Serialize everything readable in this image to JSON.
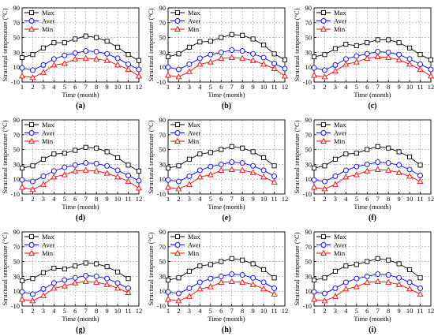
{
  "shared": {
    "ylabel": "Structural temperature (°C)",
    "xlabel": "Time (month)",
    "yticks": [
      "-10",
      "10",
      "30",
      "50",
      "70",
      "90"
    ],
    "xticks": [
      "1",
      "2",
      "3",
      "4",
      "5",
      "6",
      "7",
      "8",
      "9",
      "10",
      "11",
      "12"
    ],
    "legend": [
      "Max",
      "Aver",
      "Min"
    ]
  },
  "chart_data": [
    {
      "type": "line",
      "caption": "(a)",
      "x": [
        1,
        2,
        3,
        4,
        5,
        6,
        7,
        8,
        9,
        10,
        11,
        12
      ],
      "ylim": [
        -10,
        90
      ],
      "xlim": [
        1,
        12
      ],
      "grid": true,
      "legend_position": "top-left",
      "series": [
        {
          "name": "Max",
          "color": "#000000",
          "marker": "square",
          "values": [
            23,
            27,
            36,
            43,
            43,
            48,
            52,
            50,
            45,
            37,
            27,
            19
          ]
        },
        {
          "name": "Aver",
          "color": "#0000ff",
          "marker": "circle",
          "values": [
            9,
            6,
            13,
            21,
            26,
            29,
            32,
            31,
            28,
            22,
            14,
            7
          ]
        },
        {
          "name": "Min",
          "color": "#ff0000",
          "marker": "triangle",
          "values": [
            -2,
            -4,
            3,
            13,
            15,
            21,
            22,
            21,
            19,
            13,
            7,
            -2
          ]
        }
      ]
    },
    {
      "type": "line",
      "caption": "(b)",
      "x": [
        1,
        2,
        3,
        4,
        5,
        6,
        7,
        8,
        9,
        10,
        11,
        12
      ],
      "ylim": [
        -10,
        90
      ],
      "xlim": [
        1,
        12
      ],
      "grid": true,
      "legend_position": "top-left",
      "series": [
        {
          "name": "Max",
          "color": "#000000",
          "marker": "square",
          "values": [
            24,
            28,
            37,
            44,
            45,
            50,
            54,
            53,
            48,
            40,
            28,
            20
          ]
        },
        {
          "name": "Aver",
          "color": "#0000ff",
          "marker": "circle",
          "values": [
            10,
            7,
            14,
            22,
            27,
            30,
            33,
            32,
            28,
            23,
            15,
            8
          ]
        },
        {
          "name": "Min",
          "color": "#ff0000",
          "marker": "triangle",
          "values": [
            -1,
            -3,
            4,
            14,
            17,
            22,
            23,
            22,
            19,
            14,
            8,
            -2
          ]
        }
      ]
    },
    {
      "type": "line",
      "caption": "(c)",
      "x": [
        1,
        2,
        3,
        4,
        5,
        6,
        7,
        8,
        9,
        10,
        11,
        12
      ],
      "ylim": [
        -10,
        90
      ],
      "xlim": [
        1,
        12
      ],
      "grid": true,
      "legend_position": "top-left",
      "series": [
        {
          "name": "Max",
          "color": "#000000",
          "marker": "square",
          "values": [
            24,
            27,
            35,
            41,
            39,
            43,
            47,
            47,
            43,
            36,
            27,
            20
          ]
        },
        {
          "name": "Aver",
          "color": "#0000ff",
          "marker": "circle",
          "values": [
            9,
            6,
            13,
            21,
            25,
            28,
            31,
            30,
            27,
            21,
            14,
            7
          ]
        },
        {
          "name": "Min",
          "color": "#ff0000",
          "marker": "triangle",
          "values": [
            -1,
            -3,
            5,
            14,
            17,
            22,
            24,
            23,
            20,
            14,
            7,
            -2
          ]
        }
      ]
    },
    {
      "type": "line",
      "caption": "(d)",
      "x": [
        1,
        2,
        3,
        4,
        5,
        6,
        7,
        8,
        9,
        10,
        11,
        12
      ],
      "ylim": [
        -10,
        90
      ],
      "xlim": [
        1,
        12
      ],
      "grid": true,
      "legend_position": "top-left",
      "series": [
        {
          "name": "Max",
          "color": "#000000",
          "marker": "square",
          "values": [
            25,
            28,
            37,
            44,
            45,
            49,
            53,
            52,
            47,
            39,
            29,
            21
          ]
        },
        {
          "name": "Aver",
          "color": "#0000ff",
          "marker": "circle",
          "values": [
            9,
            7,
            14,
            21,
            26,
            29,
            32,
            31,
            28,
            22,
            15,
            8
          ]
        },
        {
          "name": "Min",
          "color": "#ff0000",
          "marker": "triangle",
          "values": [
            -1,
            -4,
            3,
            13,
            16,
            21,
            22,
            21,
            18,
            13,
            7,
            -2
          ]
        }
      ]
    },
    {
      "type": "line",
      "caption": "(e)",
      "x": [
        1,
        2,
        3,
        4,
        5,
        6,
        7,
        8,
        9,
        10,
        11,
        12
      ],
      "ylim": [
        -10,
        90
      ],
      "xlim": [
        1,
        12
      ],
      "grid": true,
      "legend_position": "top-left",
      "series": [
        {
          "name": "Max",
          "color": "#000000",
          "marker": "square",
          "values": [
            25,
            28,
            37,
            44,
            46,
            50,
            54,
            52,
            47,
            39,
            28,
            null
          ]
        },
        {
          "name": "Aver",
          "color": "#0000ff",
          "marker": "circle",
          "values": [
            9,
            7,
            14,
            22,
            27,
            30,
            33,
            32,
            28,
            22,
            14,
            null
          ]
        },
        {
          "name": "Min",
          "color": "#ff0000",
          "marker": "triangle",
          "values": [
            -1,
            -3,
            3,
            13,
            16,
            22,
            23,
            22,
            19,
            13,
            6,
            null
          ]
        }
      ]
    },
    {
      "type": "line",
      "caption": "(f)",
      "x": [
        1,
        2,
        3,
        4,
        5,
        6,
        7,
        8,
        9,
        10,
        11,
        12
      ],
      "ylim": [
        -10,
        90
      ],
      "xlim": [
        1,
        12
      ],
      "grid": true,
      "legend_position": "top-left",
      "series": [
        {
          "name": "Max",
          "color": "#000000",
          "marker": "square",
          "values": [
            25,
            28,
            37,
            44,
            45,
            50,
            54,
            52,
            47,
            40,
            29,
            null
          ]
        },
        {
          "name": "Aver",
          "color": "#0000ff",
          "marker": "circle",
          "values": [
            9,
            7,
            14,
            22,
            27,
            30,
            33,
            32,
            29,
            23,
            15,
            null
          ]
        },
        {
          "name": "Min",
          "color": "#ff0000",
          "marker": "triangle",
          "values": [
            -1,
            -3,
            3,
            13,
            16,
            21,
            23,
            22,
            19,
            14,
            7,
            null
          ]
        }
      ]
    },
    {
      "type": "line",
      "caption": "(g)",
      "x": [
        1,
        2,
        3,
        4,
        5,
        6,
        7,
        8,
        9,
        10,
        11,
        12
      ],
      "ylim": [
        -10,
        90
      ],
      "xlim": [
        1,
        12
      ],
      "grid": true,
      "legend_position": "top-left",
      "series": [
        {
          "name": "Max",
          "color": "#000000",
          "marker": "square",
          "values": [
            24,
            27,
            35,
            41,
            40,
            44,
            48,
            47,
            43,
            36,
            27,
            null
          ]
        },
        {
          "name": "Aver",
          "color": "#0000ff",
          "marker": "circle",
          "values": [
            9,
            6,
            13,
            21,
            25,
            28,
            31,
            30,
            27,
            21,
            14,
            null
          ]
        },
        {
          "name": "Min",
          "color": "#ff0000",
          "marker": "triangle",
          "values": [
            -1,
            -3,
            4,
            14,
            17,
            21,
            23,
            22,
            19,
            14,
            8,
            null
          ]
        }
      ]
    },
    {
      "type": "line",
      "caption": "(h)",
      "x": [
        1,
        2,
        3,
        4,
        5,
        6,
        7,
        8,
        9,
        10,
        11,
        12
      ],
      "ylim": [
        -10,
        90
      ],
      "xlim": [
        1,
        12
      ],
      "grid": true,
      "legend_position": "top-left",
      "series": [
        {
          "name": "Max",
          "color": "#000000",
          "marker": "square",
          "values": [
            25,
            28,
            37,
            44,
            46,
            50,
            54,
            52,
            47,
            39,
            28,
            null
          ]
        },
        {
          "name": "Aver",
          "color": "#0000ff",
          "marker": "circle",
          "values": [
            9,
            7,
            14,
            22,
            27,
            30,
            33,
            32,
            28,
            22,
            14,
            null
          ]
        },
        {
          "name": "Min",
          "color": "#ff0000",
          "marker": "triangle",
          "values": [
            -1,
            -3,
            3,
            13,
            16,
            22,
            23,
            22,
            19,
            13,
            6,
            null
          ]
        }
      ]
    },
    {
      "type": "line",
      "caption": "(i)",
      "x": [
        1,
        2,
        3,
        4,
        5,
        6,
        7,
        8,
        9,
        10,
        11,
        12
      ],
      "ylim": [
        -10,
        90
      ],
      "xlim": [
        1,
        12
      ],
      "grid": true,
      "legend_position": "top-left",
      "series": [
        {
          "name": "Max",
          "color": "#000000",
          "marker": "square",
          "values": [
            25,
            28,
            37,
            44,
            46,
            50,
            54,
            52,
            47,
            39,
            28,
            null
          ]
        },
        {
          "name": "Aver",
          "color": "#0000ff",
          "marker": "circle",
          "values": [
            9,
            7,
            14,
            22,
            27,
            30,
            33,
            32,
            28,
            22,
            14,
            null
          ]
        },
        {
          "name": "Min",
          "color": "#ff0000",
          "marker": "triangle",
          "values": [
            -1,
            -3,
            3,
            13,
            16,
            22,
            23,
            22,
            19,
            13,
            6,
            null
          ]
        }
      ]
    }
  ]
}
